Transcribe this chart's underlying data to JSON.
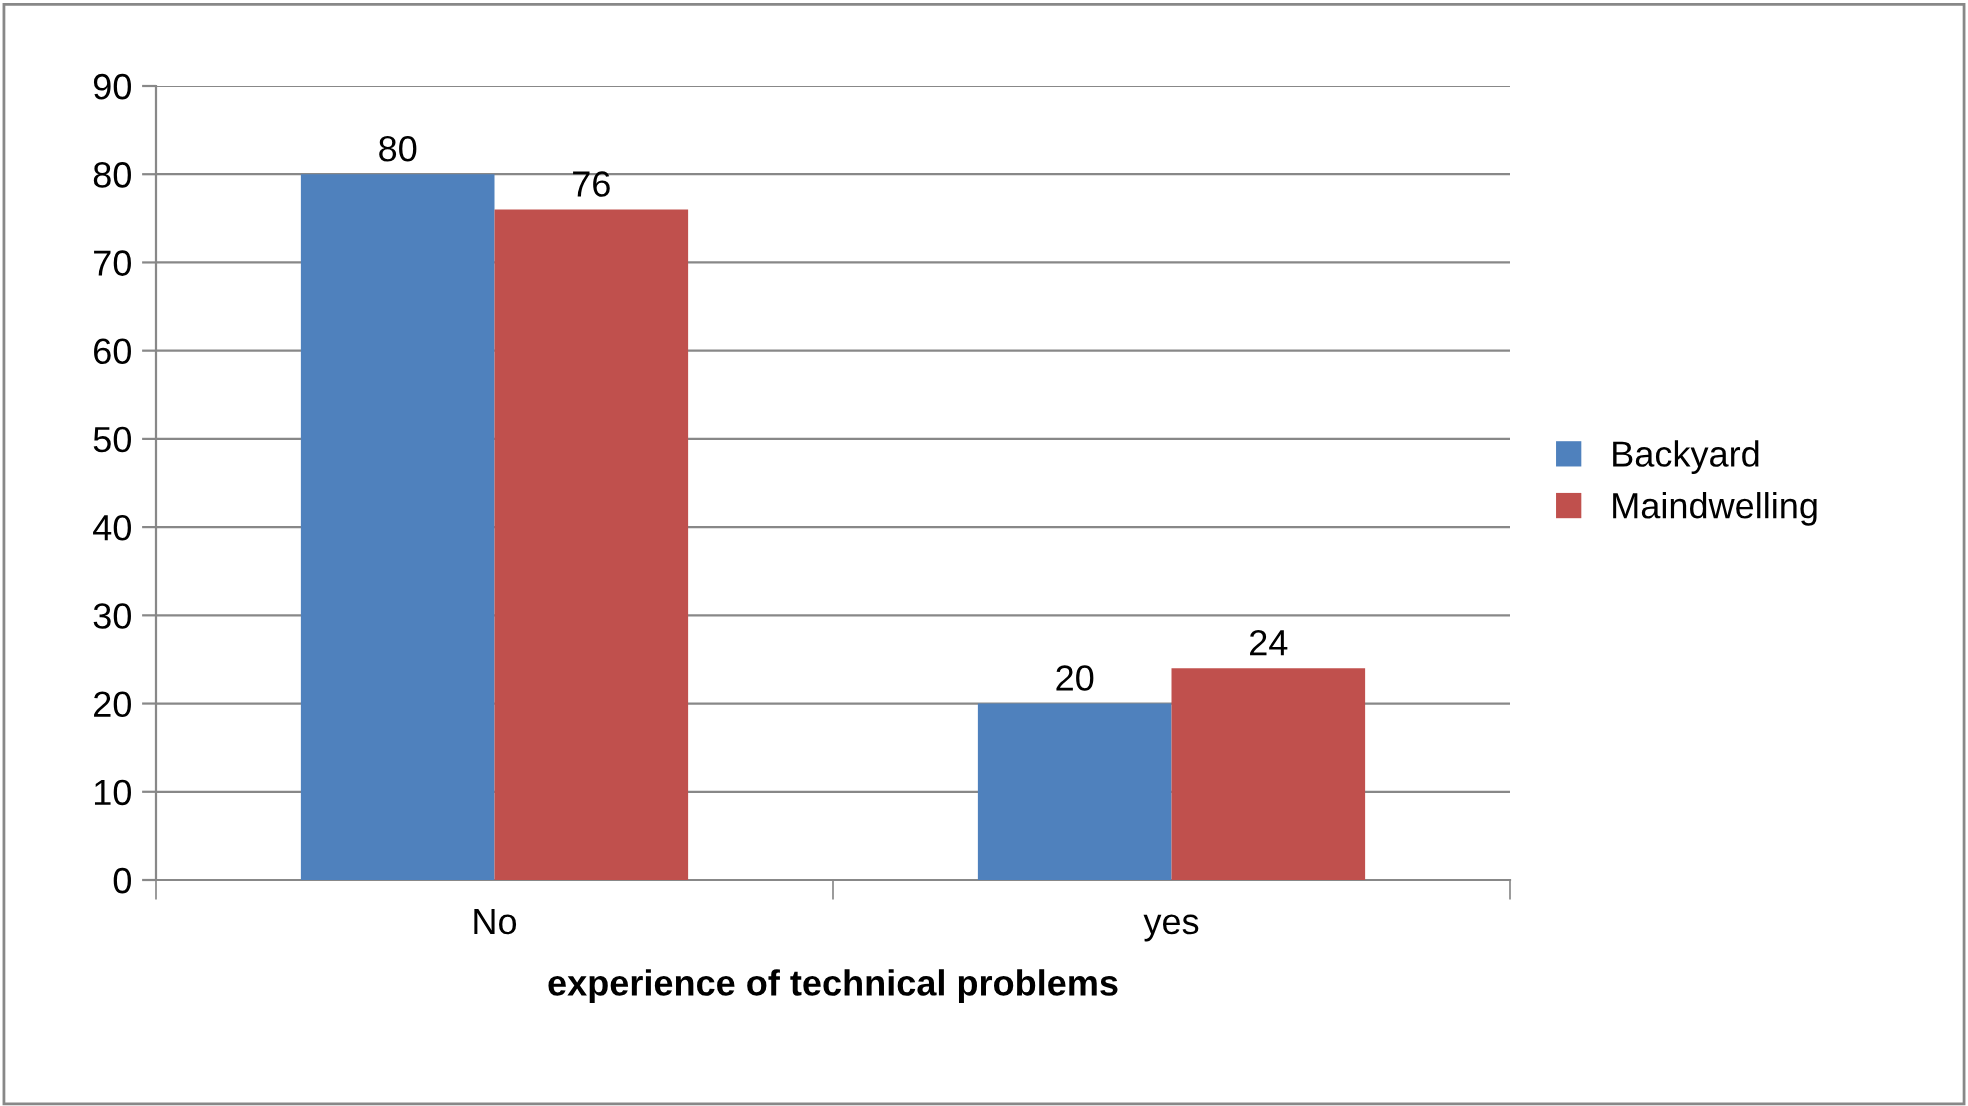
{
  "chart_data": {
    "type": "bar",
    "xlabel": "experience of technical problems",
    "categories": [
      "No",
      "yes"
    ],
    "series": [
      {
        "name": "Backyard",
        "color": "#4f81bd",
        "values": [
          80,
          20
        ]
      },
      {
        "name": "Maindwelling",
        "color": "#c0504d",
        "values": [
          76,
          24
        ]
      }
    ],
    "ylim": [
      0,
      90
    ],
    "yticks": [
      0,
      10,
      20,
      30,
      40,
      50,
      60,
      70,
      80,
      90
    ],
    "grid": "y",
    "legend": "right",
    "data_labels": true
  }
}
